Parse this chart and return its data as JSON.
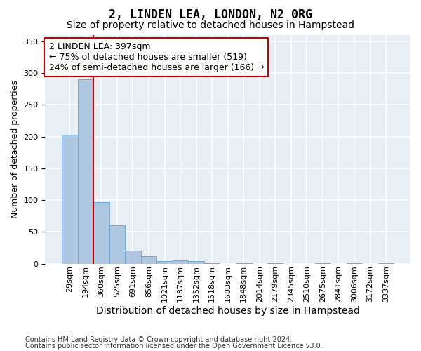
{
  "title": "2, LINDEN LEA, LONDON, N2 0RG",
  "subtitle": "Size of property relative to detached houses in Hampstead",
  "xlabel": "Distribution of detached houses by size in Hampstead",
  "ylabel": "Number of detached properties",
  "bar_values": [
    203,
    290,
    97,
    60,
    20,
    12,
    4,
    5,
    4,
    1,
    0,
    1,
    0,
    1,
    0,
    0,
    1,
    0,
    1,
    0,
    1
  ],
  "bar_labels": [
    "29sqm",
    "194sqm",
    "360sqm",
    "525sqm",
    "691sqm",
    "856sqm",
    "1021sqm",
    "1187sqm",
    "1352sqm",
    "1518sqm",
    "1683sqm",
    "1848sqm",
    "2014sqm",
    "2179sqm",
    "2345sqm",
    "2510sqm",
    "2675sqm",
    "2841sqm",
    "3006sqm",
    "3172sqm",
    "3337sqm"
  ],
  "bar_color": "#aec6e0",
  "bar_edge_color": "#6da8d4",
  "vline_color": "#cc0000",
  "vline_pos": 1.5,
  "annotation_text": "2 LINDEN LEA: 397sqm\n← 75% of detached houses are smaller (519)\n24% of semi-detached houses are larger (166) →",
  "annotation_bbox_color": "#ffffff",
  "annotation_bbox_edge": "#cc0000",
  "ylim": [
    0,
    360
  ],
  "yticks": [
    0,
    50,
    100,
    150,
    200,
    250,
    300,
    350
  ],
  "background_color": "#e8eef6",
  "grid_color": "#ffffff",
  "footer_line1": "Contains HM Land Registry data © Crown copyright and database right 2024.",
  "footer_line2": "Contains public sector information licensed under the Open Government Licence v3.0.",
  "title_fontsize": 12,
  "subtitle_fontsize": 10,
  "xlabel_fontsize": 10,
  "ylabel_fontsize": 9,
  "tick_fontsize": 8,
  "annotation_fontsize": 9,
  "footer_fontsize": 7
}
